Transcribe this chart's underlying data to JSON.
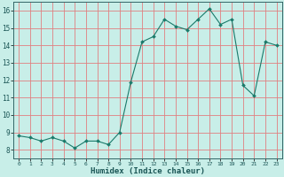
{
  "x": [
    0,
    1,
    2,
    3,
    4,
    5,
    6,
    7,
    8,
    9,
    10,
    11,
    12,
    13,
    14,
    15,
    16,
    17,
    18,
    19,
    20,
    21,
    22,
    23
  ],
  "y": [
    8.8,
    8.7,
    8.5,
    8.7,
    8.5,
    8.1,
    8.5,
    8.5,
    8.3,
    9.0,
    11.9,
    14.2,
    14.5,
    15.5,
    15.1,
    14.9,
    15.5,
    16.1,
    15.2,
    15.5,
    11.7,
    11.1,
    14.2,
    14.0
  ],
  "line_color": "#1a7a6a",
  "marker": "D",
  "marker_size": 2.0,
  "bg_color": "#c8eee8",
  "grid_color_major": "#e08080",
  "grid_color_minor": "#d4b0b0",
  "xlabel": "Humidex (Indice chaleur)",
  "ylabel": "",
  "title": "",
  "xlim": [
    -0.5,
    23.5
  ],
  "ylim": [
    7.5,
    16.5
  ],
  "yticks": [
    8,
    9,
    10,
    11,
    12,
    13,
    14,
    15,
    16
  ],
  "xticks": [
    0,
    1,
    2,
    3,
    4,
    5,
    6,
    7,
    8,
    9,
    10,
    11,
    12,
    13,
    14,
    15,
    16,
    17,
    18,
    19,
    20,
    21,
    22,
    23
  ]
}
